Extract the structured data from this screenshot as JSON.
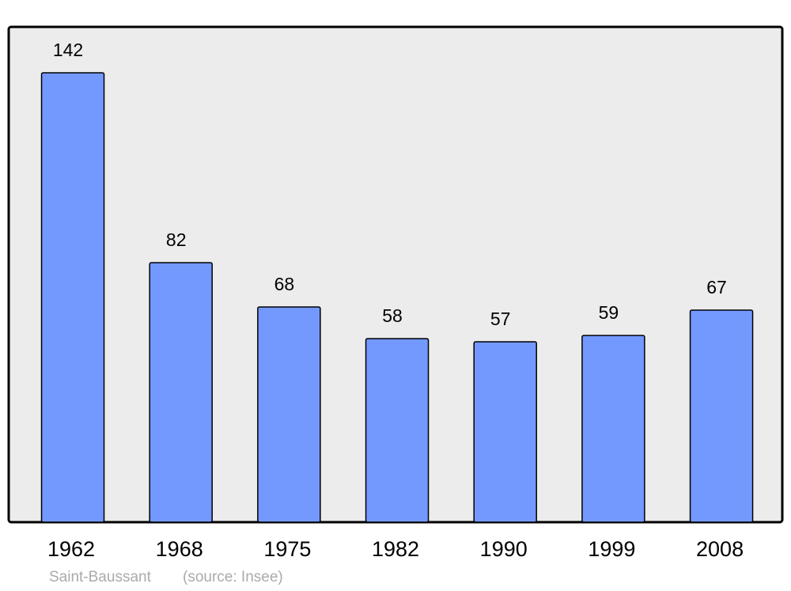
{
  "chart_data": {
    "type": "bar",
    "categories": [
      "1962",
      "1968",
      "1975",
      "1982",
      "1990",
      "1999",
      "2008"
    ],
    "values": [
      142,
      82,
      68,
      58,
      57,
      59,
      67
    ],
    "color": "#7399ff",
    "ylim": [
      0,
      156.5
    ],
    "caption": "Saint-Baussant",
    "source": "(source: Insee)"
  }
}
